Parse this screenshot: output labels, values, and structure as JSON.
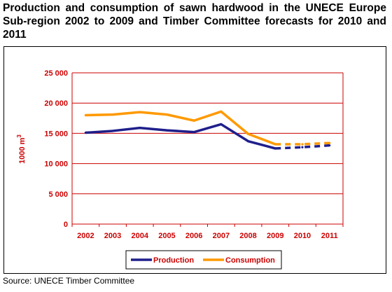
{
  "title": "Production and consumption of sawn hardwood in the UNECE Europe Sub-region 2002 to 2009 and Timber Committee forecasts for 2010 and 2011",
  "source": "Source: UNECE Timber Committee",
  "colors": {
    "axis_text": "#cc0000",
    "gridline": "#cc0000",
    "production": "#1f1f8c",
    "consumption": "#ff9900"
  },
  "chart_data": {
    "type": "line",
    "title": "Production and consumption of sawn hardwood in the UNECE Europe Sub-region 2002 to 2009 and Timber Committee forecasts for 2010 and 2011",
    "ylabel_main": "1000 m",
    "ylabel_sup": "3",
    "xlabel": "",
    "ylim": [
      0,
      25000
    ],
    "yticks": [
      0,
      5000,
      10000,
      15000,
      20000,
      25000
    ],
    "ytick_labels": [
      "0",
      "5 000",
      "10 000",
      "15 000",
      "20 000",
      "25 000"
    ],
    "categories": [
      "2002",
      "2003",
      "2004",
      "2005",
      "2006",
      "2007",
      "2008",
      "2009",
      "2010",
      "2011"
    ],
    "grid": true,
    "legend_position": "bottom",
    "forecast_from": "2009",
    "series": [
      {
        "name": "Production",
        "values": [
          15100,
          15400,
          15900,
          15500,
          15200,
          16500,
          13700,
          12500,
          12700,
          13000
        ]
      },
      {
        "name": "Consumption",
        "values": [
          18000,
          18100,
          18500,
          18100,
          17100,
          18600,
          14900,
          13200,
          13200,
          13400
        ]
      }
    ]
  }
}
